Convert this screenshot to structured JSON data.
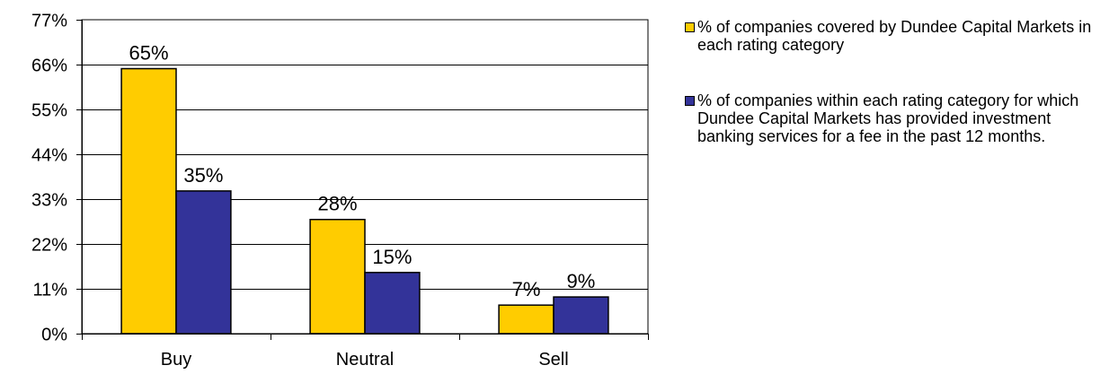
{
  "chart_data": {
    "type": "bar",
    "categories": [
      "Buy",
      "Neutral",
      "Sell"
    ],
    "series": [
      {
        "name": "% of companies covered by Dundee Capital Markets in each rating category",
        "color": "#FFCC00",
        "values": [
          65,
          28,
          7
        ],
        "labels": [
          "65%",
          "28%",
          "7%"
        ]
      },
      {
        "name": "% of companies within each rating category for which Dundee Capital Markets has provided investment banking services for a fee in the past 12 months.",
        "color": "#333399",
        "values": [
          35,
          15,
          9
        ],
        "labels": [
          "35%",
          "15%",
          "9%"
        ]
      }
    ],
    "ylim": [
      0,
      77
    ],
    "yticks": [
      0,
      11,
      22,
      33,
      44,
      55,
      66,
      77
    ],
    "ytick_labels": [
      "0%",
      "11%",
      "22%",
      "33%",
      "44%",
      "55%",
      "66%",
      "77%"
    ],
    "grid": true,
    "legend_position": "right"
  }
}
